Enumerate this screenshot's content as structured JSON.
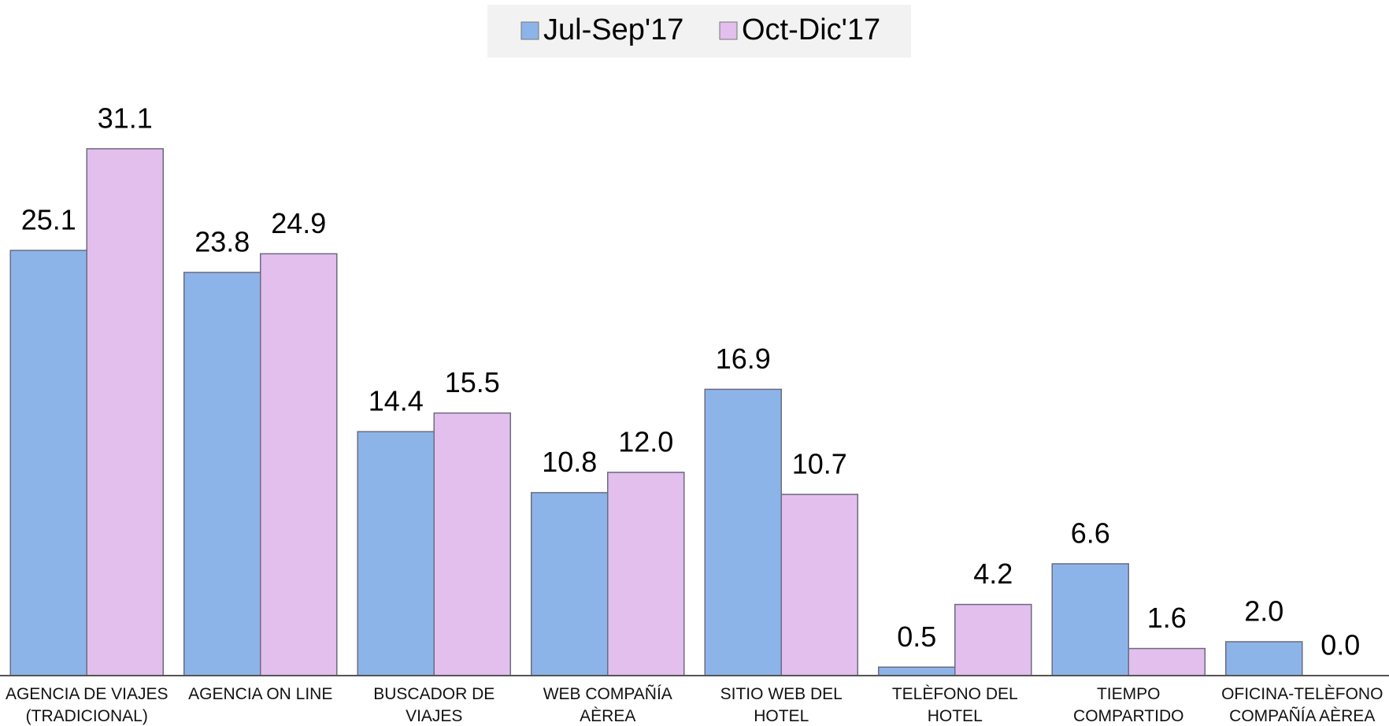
{
  "chart_data": {
    "type": "bar",
    "categories": [
      "AGENCIA DE VIAJES\n(TRADICIONAL)",
      "AGENCIA ON LINE",
      "BUSCADOR DE VIAJES",
      "WEB COMPAÑÍA\nAÈREA",
      "SITIO WEB DEL HOTEL",
      "TELÈFONO DEL HOTEL",
      "TIEMPO COMPARTIDO",
      "OFICINA-TELÈFONO\nCOMPAÑÍA AÈREA"
    ],
    "series": [
      {
        "name": "Jul-Sep'17",
        "color": "#8db4e8",
        "values": [
          25.1,
          23.8,
          14.4,
          10.8,
          16.9,
          0.5,
          6.6,
          2
        ],
        "value_labels": [
          "25.1",
          "23.8",
          "14.4",
          "10.8",
          "16.9",
          "0.5",
          "6.6",
          "2.0"
        ]
      },
      {
        "name": "Oct-Dic'17",
        "color": "#e2bfec",
        "values": [
          31.1,
          24.9,
          15.5,
          12,
          10.7,
          4.2,
          1.6,
          0
        ],
        "value_labels": [
          "31.1",
          "24.9",
          "15.5",
          "12.0",
          "10.7",
          "4.2",
          "1.6",
          "0.0"
        ]
      }
    ],
    "ylim": [
      0,
      35
    ],
    "legend": "top"
  }
}
